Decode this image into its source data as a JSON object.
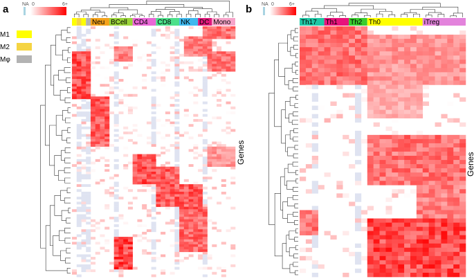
{
  "colors": {
    "na": "#a9d4e2",
    "high": "#ff0000",
    "low": "#ffffff",
    "empty": "#dfe3f1",
    "m1": "#ffff00",
    "m2": "#f5d442",
    "mphi": "#b3b3b3"
  },
  "chart_data": [
    {
      "type": "heatmap",
      "panel_label": "a",
      "ylabel": "Genes",
      "color_scale": {
        "na_label": "NA",
        "min_label": "0",
        "max_label": "6+"
      },
      "sample_legend": [
        {
          "label": "M1",
          "color": "#ffff00"
        },
        {
          "label": "M2",
          "color": "#f5d442"
        },
        {
          "label": "Mφ",
          "color": "#b3b3b3"
        }
      ],
      "columns": [
        {
          "label": "",
          "n": 1,
          "color": "#ffff00"
        },
        {
          "label": "",
          "n": 1,
          "color": "#f5d442"
        },
        {
          "label": "",
          "n": 1,
          "color": "#ffff00"
        },
        {
          "label": "",
          "n": 1,
          "color": "#b3b3b3"
        },
        {
          "label": "Neu",
          "n": 4,
          "color": "#f5a21b"
        },
        {
          "label": "BCell",
          "n": 5,
          "color": "#9bd53a"
        },
        {
          "label": "CD4",
          "n": 5,
          "color": "#e966d6"
        },
        {
          "label": "CD8",
          "n": 5,
          "color": "#4ce08a"
        },
        {
          "label": "NK",
          "n": 4,
          "color": "#3fb8ee"
        },
        {
          "label": "DC",
          "n": 3,
          "color": "#e0177b"
        },
        {
          "label": "Mono",
          "n": 5,
          "color": "#f7a4c9"
        }
      ],
      "rows": 100,
      "blocks": [
        {
          "r0": 0,
          "r1": 5,
          "c0": 28,
          "c1": 37,
          "v": 0.6
        },
        {
          "r0": 4,
          "r1": 12,
          "c0": 24,
          "c1": 30,
          "v": 0.55
        },
        {
          "r0": 10,
          "r1": 18,
          "c0": 29,
          "c1": 37,
          "v": 0.6
        },
        {
          "r0": 10,
          "r1": 29,
          "c0": 0,
          "c1": 4,
          "v": 0.75
        },
        {
          "r0": 8,
          "r1": 14,
          "c0": 9,
          "c1": 13,
          "v": 0.55
        },
        {
          "r0": 28,
          "r1": 48,
          "c0": 4,
          "c1": 8,
          "v": 0.7
        },
        {
          "r0": 51,
          "r1": 63,
          "c0": 13,
          "c1": 18,
          "v": 0.75
        },
        {
          "r0": 56,
          "r1": 72,
          "c0": 18,
          "c1": 23,
          "v": 0.7
        },
        {
          "r0": 63,
          "r1": 73,
          "c0": 23,
          "c1": 28,
          "v": 0.7
        },
        {
          "r0": 72,
          "r1": 90,
          "c0": 23,
          "c1": 29,
          "v": 0.65
        },
        {
          "r0": 84,
          "r1": 97,
          "c0": 9,
          "c1": 13,
          "v": 0.8
        },
        {
          "r0": 48,
          "r1": 56,
          "c0": 29,
          "c1": 37,
          "v": 0.45
        }
      ],
      "na_columns": [
        1,
        2,
        3,
        9,
        17,
        22,
        28
      ]
    },
    {
      "type": "heatmap",
      "panel_label": "b",
      "ylabel": "Genes",
      "color_scale": {
        "na_label": "NA",
        "min_label": "0",
        "max_label": "6+"
      },
      "columns": [
        {
          "label": "Th17",
          "n": 4,
          "color": "#1fc7a5"
        },
        {
          "label": "Th1",
          "n": 4,
          "color": "#e8137c"
        },
        {
          "label": "Th2",
          "n": 3,
          "color": "#38cc2e"
        },
        {
          "label": "Th0",
          "n": 9,
          "color": "#ffff00"
        },
        {
          "label": "iTreg",
          "n": 7,
          "color": "#e383dc"
        }
      ],
      "rows": 60,
      "blocks": [
        {
          "r0": 0,
          "r1": 14,
          "c0": 0,
          "c1": 11,
          "v": 0.6
        },
        {
          "r0": 2,
          "r1": 14,
          "c0": 11,
          "c1": 27,
          "v": 0.45
        },
        {
          "r0": 14,
          "r1": 22,
          "c0": 11,
          "c1": 20,
          "v": 0.35
        },
        {
          "r0": 26,
          "r1": 38,
          "c0": 11,
          "c1": 27,
          "v": 0.6
        },
        {
          "r0": 38,
          "r1": 46,
          "c0": 19,
          "c1": 27,
          "v": 0.55
        },
        {
          "r0": 46,
          "r1": 60,
          "c0": 11,
          "c1": 27,
          "v": 0.8
        },
        {
          "r0": 44,
          "r1": 50,
          "c0": 0,
          "c1": 3,
          "v": 0.6
        }
      ],
      "na_columns": [
        2,
        9
      ]
    }
  ]
}
